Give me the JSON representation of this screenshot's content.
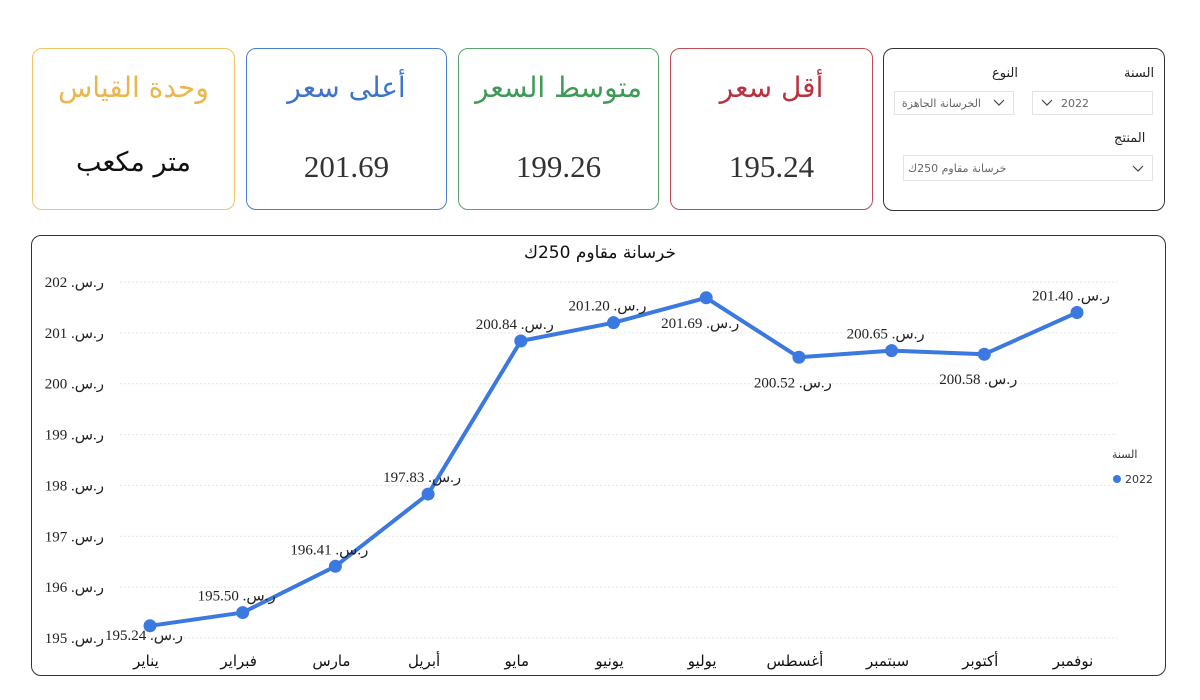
{
  "cards": {
    "unit": {
      "title": "وحدة القياس",
      "value": "متر مكعب"
    },
    "max": {
      "title": "أعلى سعر",
      "value": "201.69"
    },
    "avg": {
      "title": "متوسط السعر",
      "value": "199.26"
    },
    "min": {
      "title": "أقل سعر",
      "value": "195.24"
    }
  },
  "filters": {
    "year_label": "السنة",
    "year_value": "2022",
    "type_label": "النوع",
    "type_value": "الخرسانة الجاهزة",
    "product_label": "المنتج",
    "product_value": "خرسانة مقاوم 250ك"
  },
  "colors": {
    "line": "#3b78e0",
    "unit": "#eab64e",
    "max": "#3c74cc",
    "avg": "#3d9a57",
    "min": "#b8323f"
  },
  "chart_data": {
    "type": "line",
    "title": "خرسانة مقاوم 250ك",
    "categories": [
      "يناير",
      "فبراير",
      "مارس",
      "أبريل",
      "مايو",
      "يونيو",
      "يوليو",
      "أغسطس",
      "سبتمبر",
      "أكتوبر",
      "نوفمبر"
    ],
    "series": [
      {
        "name": "2022",
        "values": [
          195.24,
          195.5,
          196.41,
          197.83,
          200.84,
          201.2,
          201.69,
          200.52,
          200.65,
          200.58,
          201.4
        ]
      }
    ],
    "data_labels": [
      "195.24 .ر.س",
      "195.50 .ر.س",
      "196.41 .ر.س",
      "197.83 .ر.س",
      "200.84 .ر.س",
      "201.20 .ر.س",
      "201.69 .ر.س",
      "200.52 .ر.س",
      "200.65 .ر.س",
      "200.58 .ر.س",
      "201.40 .ر.س"
    ],
    "y_ticks": [
      195,
      196,
      197,
      198,
      199,
      200,
      201,
      202
    ],
    "y_tick_labels": [
      "195 .ر.س",
      "196 .ر.س",
      "197 .ر.س",
      "198 .ر.س",
      "199 .ر.س",
      "200 .ر.س",
      "201 .ر.س",
      "202 .ر.س"
    ],
    "ylim": [
      195,
      202
    ],
    "legend_title": "السنة",
    "legend_position": "right",
    "grid": true
  }
}
